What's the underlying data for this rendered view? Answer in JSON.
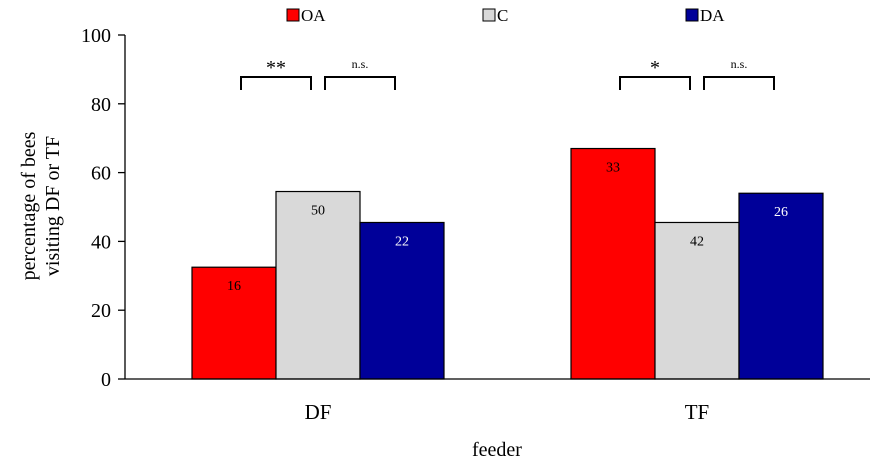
{
  "chart_data": {
    "type": "bar",
    "title": "",
    "xlabel": "feeder",
    "ylabel": "percentage of bees\nvisiting DF or TF",
    "ylim": [
      0,
      100
    ],
    "yticks": [
      0,
      20,
      40,
      60,
      80,
      100
    ],
    "categories": [
      "DF",
      "TF"
    ],
    "series": [
      {
        "name": "OA",
        "color": "#ff0000",
        "values": [
          32.5,
          67
        ],
        "labels": [
          "16",
          "33"
        ],
        "label_color": "#000000"
      },
      {
        "name": "C",
        "color": "#d9d9d9",
        "values": [
          54.5,
          45.5
        ],
        "labels": [
          "50",
          "42"
        ],
        "label_color": "#000000"
      },
      {
        "name": "DA",
        "color": "#000099",
        "values": [
          45.5,
          54
        ],
        "labels": [
          "22",
          "26"
        ],
        "label_color": "#ffffff"
      }
    ],
    "legend_position": "top",
    "grid": false,
    "significance": [
      {
        "category": "DF",
        "from": "OA",
        "to": "C",
        "label": "**"
      },
      {
        "category": "DF",
        "from": "C",
        "to": "DA",
        "label": "n.s."
      },
      {
        "category": "TF",
        "from": "OA",
        "to": "C",
        "label": "*"
      },
      {
        "category": "TF",
        "from": "C",
        "to": "DA",
        "label": "n.s."
      }
    ]
  }
}
